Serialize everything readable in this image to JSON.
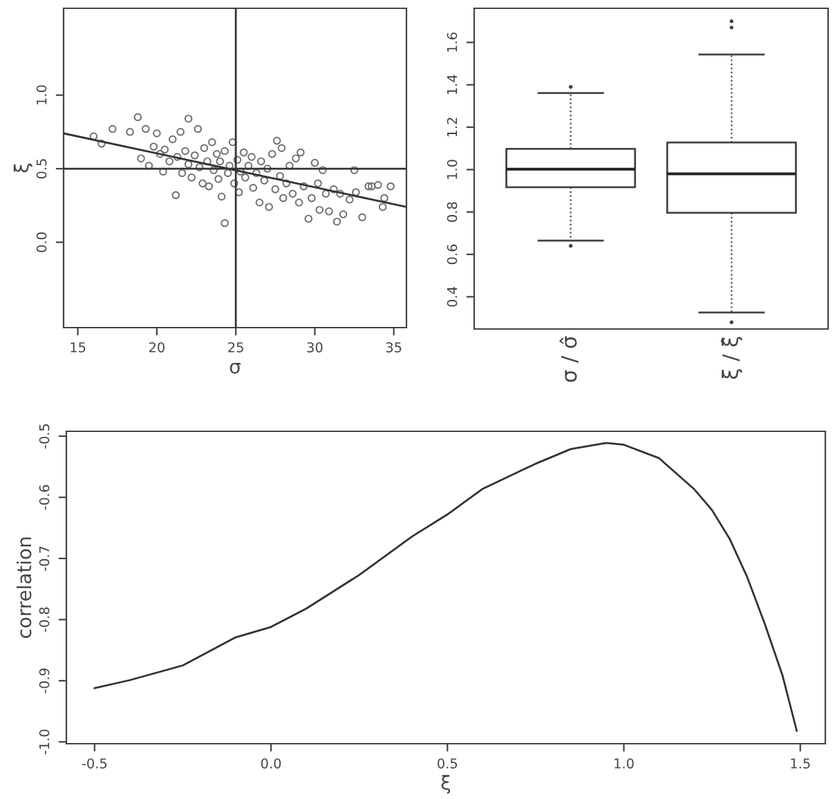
{
  "chart_data": [
    {
      "type": "scatter",
      "xlabel": "σ",
      "ylabel": "ξ",
      "xlim": [
        14.1,
        35.8
      ],
      "ylim": [
        -0.58,
        1.59
      ],
      "xticks": [
        15,
        20,
        25,
        30,
        35
      ],
      "yticks": [
        {
          "value": 0,
          "label": "0.0"
        },
        {
          "value": 0.5,
          "label": "0.5"
        },
        {
          "value": 1,
          "label": "1.0"
        }
      ],
      "ref_lines": [
        {
          "axis": "x",
          "value": 25,
          "color": "#333333"
        },
        {
          "axis": "y",
          "value": 0.5,
          "color": "#333333"
        }
      ],
      "series": [
        {
          "type": "scatter",
          "marker": "circle",
          "color": "#707070",
          "x": [
            16.0,
            16.5,
            17.2,
            18.3,
            18.8,
            19.0,
            19.3,
            19.5,
            19.8,
            20.0,
            20.2,
            20.4,
            20.5,
            20.8,
            21.0,
            21.2,
            21.3,
            21.5,
            21.6,
            21.8,
            22.0,
            22.0,
            22.2,
            22.4,
            22.6,
            22.7,
            22.9,
            23.0,
            23.2,
            23.3,
            23.5,
            23.6,
            23.8,
            23.9,
            24.0,
            24.1,
            24.3,
            24.3,
            24.5,
            24.6,
            24.8,
            24.9,
            25.1,
            25.2,
            25.3,
            25.5,
            25.6,
            25.8,
            26.0,
            26.1,
            26.3,
            26.5,
            26.6,
            26.8,
            27.0,
            27.1,
            27.3,
            27.5,
            27.6,
            27.8,
            27.9,
            28.0,
            28.2,
            28.4,
            28.6,
            28.8,
            29.0,
            29.1,
            29.3,
            29.6,
            29.8,
            30.0,
            30.2,
            30.3,
            30.5,
            30.7,
            30.9,
            31.2,
            31.4,
            31.6,
            31.8,
            32.2,
            32.5,
            32.6,
            33.0,
            33.4,
            33.6,
            34.0,
            34.3,
            34.4,
            34.8
          ],
          "values": [
            0.72,
            0.67,
            0.77,
            0.75,
            0.85,
            0.57,
            0.77,
            0.52,
            0.65,
            0.74,
            0.6,
            0.48,
            0.63,
            0.55,
            0.7,
            0.32,
            0.58,
            0.75,
            0.47,
            0.62,
            0.84,
            0.53,
            0.44,
            0.59,
            0.77,
            0.51,
            0.4,
            0.64,
            0.55,
            0.38,
            0.68,
            0.49,
            0.6,
            0.43,
            0.55,
            0.31,
            0.13,
            0.62,
            0.47,
            0.52,
            0.68,
            0.4,
            0.56,
            0.34,
            0.48,
            0.61,
            0.44,
            0.52,
            0.58,
            0.37,
            0.47,
            0.27,
            0.55,
            0.42,
            0.5,
            0.24,
            0.6,
            0.36,
            0.69,
            0.45,
            0.64,
            0.3,
            0.4,
            0.52,
            0.33,
            0.57,
            0.27,
            0.61,
            0.38,
            0.16,
            0.3,
            0.54,
            0.4,
            0.22,
            0.49,
            0.33,
            0.21,
            0.36,
            0.14,
            0.33,
            0.19,
            0.29,
            0.49,
            0.34,
            0.17,
            0.38,
            0.38,
            0.39,
            0.24,
            0.3,
            0.38
          ]
        },
        {
          "type": "line",
          "color": "#333333",
          "x": [
            14.1,
            35.8
          ],
          "values": [
            0.74,
            0.24
          ]
        }
      ]
    },
    {
      "type": "box",
      "categories": [
        "σ / σ̂",
        "ξ / ξ̂"
      ],
      "ylim": [
        0.248,
        1.761
      ],
      "yticks": [
        {
          "value": 0.4,
          "label": "0.4"
        },
        {
          "value": 0.6,
          "label": "0.6"
        },
        {
          "value": 0.8,
          "label": "0.8"
        },
        {
          "value": 1.0,
          "label": "1.0"
        },
        {
          "value": 1.2,
          "label": "1.2"
        },
        {
          "value": 1.4,
          "label": "1.4"
        },
        {
          "value": 1.6,
          "label": "1.6"
        }
      ],
      "boxes": [
        {
          "low": 0.665,
          "q1": 0.917,
          "median": 1.002,
          "q3": 1.098,
          "high": 1.361,
          "outliers": [
            1.39,
            0.64
          ]
        },
        {
          "low": 0.326,
          "q1": 0.796,
          "median": 0.98,
          "q3": 1.128,
          "high": 1.543,
          "outliers": [
            1.7,
            1.67,
            0.28
          ]
        }
      ]
    },
    {
      "type": "line",
      "xlabel": "ξ",
      "ylabel": "correlation",
      "xlim": [
        -0.58,
        1.571
      ],
      "ylim": [
        -1.003,
        -0.492
      ],
      "xticks": [
        {
          "value": -0.5,
          "label": "-0.5"
        },
        {
          "value": 0,
          "label": "0.0"
        },
        {
          "value": 0.5,
          "label": "0.5"
        },
        {
          "value": 1,
          "label": "1.0"
        },
        {
          "value": 1.5,
          "label": "1.5"
        }
      ],
      "yticks": [
        {
          "value": -1.0,
          "label": "-1.0"
        },
        {
          "value": -0.9,
          "label": "-0.9"
        },
        {
          "value": -0.8,
          "label": "-0.8"
        },
        {
          "value": -0.7,
          "label": "-0.7"
        },
        {
          "value": -0.6,
          "label": "-0.6"
        },
        {
          "value": -0.5,
          "label": "-0.5"
        }
      ],
      "series": [
        {
          "color": "#333333",
          "x": [
            -0.5,
            -0.4,
            -0.25,
            -0.1,
            0.0,
            0.1,
            0.25,
            0.4,
            0.5,
            0.6,
            0.75,
            0.85,
            0.95,
            1.0,
            1.1,
            1.2,
            1.25,
            1.3,
            1.35,
            1.4,
            1.45,
            1.49
          ],
          "values": [
            -0.912,
            -0.899,
            -0.875,
            -0.829,
            -0.812,
            -0.782,
            -0.727,
            -0.664,
            -0.628,
            -0.586,
            -0.545,
            -0.521,
            -0.511,
            -0.514,
            -0.536,
            -0.587,
            -0.621,
            -0.668,
            -0.731,
            -0.808,
            -0.892,
            -0.982
          ]
        }
      ]
    }
  ]
}
